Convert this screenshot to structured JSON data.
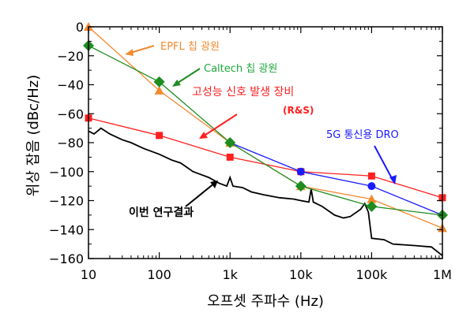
{
  "chart_data": {
    "type": "line",
    "xlabel": "오프셋 주파수 (Hz)",
    "ylabel": "위상 잡음 (dBc/Hz)",
    "xscale": "log",
    "xlim": [
      10,
      1000000
    ],
    "ylim": [
      -160,
      0
    ],
    "xticks": [
      {
        "v": 10,
        "label": "10"
      },
      {
        "v": 100,
        "label": "100"
      },
      {
        "v": 1000,
        "label": "1k"
      },
      {
        "v": 10000,
        "label": "10k"
      },
      {
        "v": 100000,
        "label": "100k"
      },
      {
        "v": 1000000,
        "label": "1M"
      }
    ],
    "yticks": [
      0,
      -20,
      -40,
      -60,
      -80,
      -100,
      -120,
      -140,
      -160
    ],
    "grid": false,
    "series": [
      {
        "name": "EPFL 칩 광원",
        "color": "#f28a30",
        "marker": "triangle",
        "x": [
          10,
          100,
          1000,
          10000,
          100000,
          1000000
        ],
        "y": [
          0,
          -44,
          -80,
          -110,
          -119,
          -139
        ]
      },
      {
        "name": "Caltech 칩 광원",
        "color": "#1e8c1e",
        "marker": "diamond",
        "x": [
          10,
          100,
          1000,
          10000,
          100000,
          1000000
        ],
        "y": [
          -13,
          -38,
          -80,
          -110,
          -124,
          -130
        ]
      },
      {
        "name": "고성능 신호 발생 장비 (R&S)",
        "color": "#ff2020",
        "marker": "square",
        "x": [
          10,
          100,
          1000,
          10000,
          100000,
          1000000
        ],
        "y": [
          -63,
          -75,
          -90,
          -100,
          -103,
          -118
        ]
      },
      {
        "name": "5G 통신용 DRO",
        "color": "#1a1aff",
        "marker": "circle",
        "x": [
          1000,
          10000,
          100000,
          1000000
        ],
        "y": [
          -80,
          -100,
          -110,
          -130
        ]
      },
      {
        "name": "이번 연구결과",
        "color": "#000000",
        "marker": "none",
        "x": [
          10,
          12,
          15,
          20,
          30,
          40,
          60,
          100,
          150,
          200,
          300,
          500,
          700,
          900,
          1000,
          1100,
          1500,
          2000,
          3000,
          5000,
          8000,
          10000,
          13000,
          14000,
          15000,
          20000,
          30000,
          40000,
          50000,
          70000,
          80000,
          90000,
          100000,
          150000,
          200000,
          400000,
          700000,
          1000000
        ],
        "y": [
          -72,
          -74,
          -70,
          -74,
          -78,
          -80,
          -84,
          -88,
          -92,
          -94,
          -100,
          -104,
          -108,
          -110,
          -104,
          -110,
          -111,
          -114,
          -116,
          -118,
          -119,
          -120,
          -121,
          -112,
          -121,
          -124,
          -130,
          -132,
          -131,
          -126,
          -122,
          -128,
          -146,
          -147,
          -150,
          -151,
          -152,
          -158
        ]
      }
    ],
    "annotations": [
      {
        "text": "EPFL 칩 광원",
        "color": "#f28a30"
      },
      {
        "text": "Caltech 칩 광원",
        "color": "#1eaa3c"
      },
      {
        "text": "고성능 신호 발생 장비",
        "color": "#ff2020"
      },
      {
        "text": "(R&S)",
        "color": "#ff2020"
      },
      {
        "text": "5G 통신용 DRO",
        "color": "#1a1aff"
      },
      {
        "text": "이번 연구결과",
        "color": "#000000"
      }
    ]
  }
}
